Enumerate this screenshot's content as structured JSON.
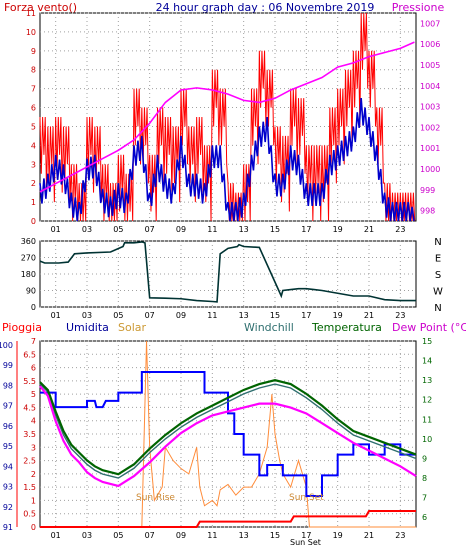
{
  "header": {
    "left_label": "Forza vento()",
    "title": "24 hour graph day : 06 Novembre 2019",
    "right_label": "Pressione"
  },
  "hour_ticks": [
    "01",
    "03",
    "05",
    "07",
    "09",
    "11",
    "13",
    "15",
    "17",
    "19",
    "21",
    "23"
  ],
  "bottom_labels": {
    "pioggia": "Pioggia",
    "umidita": "Umidita",
    "solar": "Solar",
    "windchill": "Windchill",
    "temperatura": "Temperatura",
    "dew_point": "Dew Point (°C)",
    "sun_rise": "Sun Rise",
    "sun_set": "Sun Set",
    "sun_set_axis": "Sun Set"
  },
  "colors": {
    "wind": "#ff0000",
    "wind_avg": "#0000cc",
    "pressure": "#ff00ff",
    "direction": "#003333",
    "humidity": "#0000ff",
    "solar": "#ff8c3a",
    "windchill": "#2f6f6f",
    "temperature": "#006400",
    "dewpoint": "#ff00ff",
    "rain": "#ff0000",
    "left_axis_red": "#cc0000",
    "right_axis_green": "#006600",
    "humidity_axis": "#000099"
  },
  "chart_data": [
    {
      "type": "line",
      "title": "24 hour graph day : 06 Novembre 2019",
      "y_left_label": "Forza vento()",
      "y_left_ticks": [
        "0",
        "1",
        "2",
        "3",
        "4",
        "5",
        "6",
        "7",
        "8",
        "9",
        "10",
        "11"
      ],
      "ylim_left": [
        0,
        11
      ],
      "y_right_label": "Pressione",
      "y_right_ticks": [
        "998",
        "999",
        "1000",
        "1001",
        "1002",
        "1003",
        "1004",
        "1005",
        "1006",
        "1007"
      ],
      "ylim_right": [
        997.5,
        1007.5
      ],
      "x_ticks": [
        "01",
        "03",
        "05",
        "07",
        "09",
        "11",
        "13",
        "15",
        "17",
        "19",
        "21",
        "23"
      ],
      "xlim": [
        0,
        24
      ],
      "grid": true,
      "series": [
        {
          "name": "Pressione",
          "x": [
            0,
            1,
            2,
            3,
            4,
            5,
            6,
            7,
            8,
            9,
            10,
            11,
            12,
            13,
            14,
            15,
            16,
            17,
            18,
            19,
            20,
            21,
            22,
            23,
            23.9
          ],
          "y": [
            998.9,
            999.3,
            999.7,
            1000.1,
            1000.5,
            1000.9,
            1001.4,
            1002.2,
            1003.2,
            1003.8,
            1003.9,
            1003.8,
            1003.6,
            1003.3,
            1003.2,
            1003.4,
            1003.8,
            1004.1,
            1004.4,
            1004.9,
            1005.1,
            1005.4,
            1005.6,
            1005.8,
            1006.1
          ]
        },
        {
          "x": [
            0,
            0.5,
            1,
            1.5,
            2,
            2.5,
            3,
            3.5,
            4,
            4.5,
            5,
            5.5,
            6,
            6.5,
            7,
            7.5,
            8,
            8.5,
            9,
            9.5,
            10,
            10.5,
            11,
            11.5,
            12,
            12.5,
            13,
            13.5,
            14,
            14.5,
            15,
            15.5,
            16,
            16.5,
            17,
            17.5,
            18,
            18.5,
            19,
            19.5,
            20,
            20.5,
            21,
            21.5,
            22,
            22.5,
            23,
            23.5,
            24
          ],
          "y": [
            1.5,
            2,
            3,
            2.5,
            1,
            0.5,
            2.8,
            3,
            1.2,
            0.8,
            1.5,
            1,
            3.5,
            4,
            1,
            3,
            2,
            1.5,
            4,
            2,
            2,
            1.5,
            3.5,
            3.5,
            0.5,
            0.5,
            1,
            3,
            4.5,
            5,
            2,
            2,
            3.5,
            3,
            1.5,
            1.5,
            1.5,
            3,
            3.5,
            4,
            4.5,
            6,
            5,
            3.5,
            1,
            0.5,
            0.5,
            0.5,
            0
          ]
        },
        {
          "x": [
            0,
            0.5,
            1,
            1.5,
            2,
            2.5,
            3,
            3.5,
            4,
            4.5,
            5,
            5.5,
            6,
            6.5,
            7,
            7.5,
            8,
            8.5,
            9,
            9.5,
            10,
            10.5,
            11,
            11.5,
            12,
            12.5,
            13,
            13.5,
            14,
            14.5,
            15,
            15.5,
            16,
            16.5,
            17,
            17.5,
            18,
            18.5,
            19,
            19.5,
            20,
            20.5,
            21,
            21.5,
            22,
            22.5,
            23,
            23.5,
            24
          ],
          "y": [
            5.5,
            5,
            5.5,
            5,
            3,
            2,
            5.5,
            5,
            3,
            2,
            3.5,
            2.5,
            7,
            6,
            3.5,
            6,
            5.5,
            5,
            7,
            5,
            5.5,
            4,
            8,
            7,
            2,
            1.5,
            3,
            7,
            9,
            8,
            5,
            4.5,
            7,
            6.5,
            4,
            4,
            4,
            6,
            7,
            8,
            9,
            11,
            9,
            6,
            2,
            1.5,
            1.5,
            1.5,
            0
          ]
        }
      ]
    },
    {
      "type": "line",
      "y_left_ticks": [
        "0",
        "90",
        "180",
        "270",
        "360"
      ],
      "ylim": [
        0,
        360
      ],
      "y_right_ticks": [
        "N",
        "W",
        "S",
        "E",
        "N"
      ],
      "x_ticks": [
        "01",
        "03",
        "05",
        "07",
        "09",
        "11",
        "13",
        "15",
        "17",
        "19",
        "21",
        "23"
      ],
      "xlim": [
        0,
        24
      ],
      "grid": true,
      "series": [
        {
          "x": [
            0,
            0.3,
            1.2,
            1.8,
            2.2,
            3,
            4.5,
            5.3,
            5.4,
            6,
            6.5,
            6.7,
            7,
            8,
            9,
            10,
            11,
            11.3,
            11.5,
            12,
            12.6,
            12.7,
            13,
            14,
            15.4,
            15.5,
            16,
            16.5,
            17,
            17.5,
            18,
            19,
            20,
            21,
            22,
            23,
            24
          ],
          "y": [
            250,
            240,
            240,
            245,
            290,
            295,
            300,
            330,
            350,
            350,
            355,
            350,
            50,
            48,
            45,
            35,
            30,
            28,
            290,
            320,
            330,
            340,
            330,
            325,
            60,
            90,
            95,
            100,
            100,
            95,
            90,
            75,
            60,
            60,
            40,
            35,
            35
          ]
        }
      ]
    },
    {
      "type": "line",
      "y_left_ticks": [
        "0",
        "0.5",
        "1",
        "1.5",
        "2",
        "2.5",
        "3",
        "3.5",
        "4",
        "4.5",
        "5",
        "5.5",
        "6",
        "6.5",
        "7"
      ],
      "ylim_left": [
        0,
        7
      ],
      "y_humidity_ticks": [
        "91",
        "92",
        "93",
        "94",
        "95",
        "96",
        "97",
        "98",
        "99",
        "100"
      ],
      "ylim_humidity": [
        91,
        100
      ],
      "y_right_ticks": [
        "6",
        "7",
        "8",
        "9",
        "10",
        "11",
        "12",
        "13",
        "14",
        "15"
      ],
      "ylim_right": [
        5.5,
        15
      ],
      "x_ticks": [
        "01",
        "03",
        "05",
        "07",
        "09",
        "11",
        "13",
        "15",
        "17",
        "19",
        "21",
        "23"
      ],
      "x_extra_tick": "Sun Set",
      "xlim": [
        0,
        24
      ],
      "grid": true,
      "series": [
        {
          "name": "Pioggia",
          "x": [
            0,
            10,
            10.2,
            16,
            16.2,
            20.8,
            21,
            24
          ],
          "y": [
            0,
            0,
            0.2,
            0.2,
            0.4,
            0.4,
            0.6,
            0.6
          ]
        },
        {
          "name": "Umidita",
          "x": [
            0,
            1,
            1,
            3,
            3,
            3.5,
            3.6,
            4,
            4.2,
            5,
            5,
            6.5,
            6.5,
            8,
            8,
            10.5,
            10.5,
            12,
            12,
            12.4,
            12.4,
            13,
            13,
            14,
            14,
            14.5,
            14.5,
            15.5,
            15.5,
            17,
            17,
            18,
            18,
            19,
            19,
            20,
            20,
            21,
            21,
            22,
            22,
            23,
            23,
            24
          ],
          "y": [
            97.5,
            97.5,
            96.8,
            96.8,
            97.1,
            97.1,
            96.8,
            96.8,
            97.1,
            97.1,
            97.5,
            97.5,
            98.5,
            98.5,
            98.5,
            98.5,
            97.5,
            97.5,
            96.5,
            96.5,
            95.5,
            95.5,
            94.5,
            94.5,
            93.5,
            93.5,
            94,
            94,
            93.5,
            93.5,
            92.5,
            92.5,
            93.5,
            93.5,
            94.5,
            94.5,
            95,
            95,
            94.5,
            94.5,
            95,
            95,
            94.5,
            94.5
          ]
        },
        {
          "name": "Solar",
          "x": [
            0,
            6.5,
            6.8,
            7,
            7.3,
            7.8,
            8,
            8.5,
            9,
            9.5,
            10,
            10.2,
            10.5,
            11,
            11.3,
            11.5,
            12,
            12.5,
            13,
            13.5,
            14,
            14.5,
            14.8,
            15,
            15.3,
            15.5,
            16,
            16.5,
            17,
            17.2,
            24
          ],
          "y": [
            0,
            0,
            7,
            3,
            1,
            1.5,
            3,
            2.5,
            2.2,
            2,
            3,
            1.5,
            0.8,
            1,
            0.8,
            1.4,
            1.6,
            1.2,
            1.5,
            1.5,
            2,
            3,
            5,
            3.5,
            2.5,
            2,
            1.5,
            2.5,
            1.5,
            0,
            0
          ]
        },
        {
          "name": "Windchill",
          "x": [
            0,
            0.5,
            1,
            1.5,
            2,
            2.5,
            3,
            3.5,
            4,
            4.5,
            5,
            6,
            7,
            8,
            9,
            10,
            11,
            12,
            13,
            14,
            15,
            16,
            17,
            18,
            19,
            20,
            21,
            22,
            23,
            24
          ],
          "y": [
            12.8,
            12.4,
            11.2,
            10.2,
            9.5,
            9.1,
            8.7,
            8.4,
            8.2,
            8.1,
            8.0,
            8.5,
            9.3,
            10.0,
            10.6,
            11.1,
            11.5,
            11.9,
            12.3,
            12.6,
            12.8,
            12.6,
            12.1,
            11.5,
            10.8,
            10.2,
            9.9,
            9.6,
            9.3,
            9.0
          ]
        },
        {
          "name": "Temperatura",
          "x": [
            0,
            0.5,
            1,
            1.5,
            2,
            2.5,
            3,
            3.5,
            4,
            4.5,
            5,
            6,
            7,
            8,
            9,
            10,
            11,
            12,
            13,
            14,
            15,
            16,
            17,
            18,
            19,
            20,
            21,
            22,
            23,
            24
          ],
          "y": [
            12.9,
            12.5,
            11.4,
            10.4,
            9.7,
            9.3,
            8.9,
            8.6,
            8.4,
            8.3,
            8.2,
            8.7,
            9.5,
            10.2,
            10.8,
            11.3,
            11.7,
            12.1,
            12.5,
            12.8,
            13.0,
            12.8,
            12.3,
            11.7,
            11.0,
            10.4,
            10.1,
            9.8,
            9.5,
            9.2
          ]
        },
        {
          "name": "Dew Point",
          "x": [
            0,
            0.5,
            1,
            1.5,
            2,
            2.5,
            3,
            3.5,
            4,
            4.5,
            5,
            6,
            7,
            8,
            9,
            10,
            11,
            12,
            13,
            14,
            15,
            16,
            17,
            18,
            19,
            20,
            21,
            22,
            23,
            24
          ],
          "y": [
            12.7,
            12.2,
            10.9,
            9.9,
            9.2,
            8.8,
            8.3,
            8.0,
            7.8,
            7.7,
            7.6,
            8.1,
            8.8,
            9.6,
            10.3,
            10.8,
            11.2,
            11.4,
            11.6,
            11.8,
            11.8,
            11.6,
            11.3,
            10.8,
            10.3,
            9.8,
            9.4,
            9.0,
            8.6,
            8.1
          ]
        }
      ]
    }
  ]
}
